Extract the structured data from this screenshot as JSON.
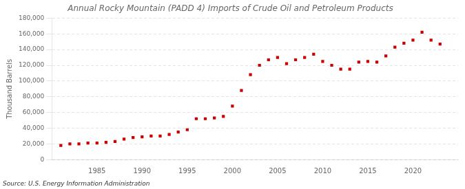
{
  "chart_data": {
    "type": "scatter",
    "title": "Annual Rocky Mountain (PADD 4) Imports of Crude Oil and Petroleum Products",
    "ylabel": "Thousand Barrels",
    "source": "Source: U.S. Energy Information Administration",
    "x": [
      1981,
      1982,
      1983,
      1984,
      1985,
      1986,
      1987,
      1988,
      1989,
      1990,
      1991,
      1992,
      1993,
      1994,
      1995,
      1996,
      1997,
      1998,
      1999,
      2000,
      2001,
      2002,
      2003,
      2004,
      2005,
      2006,
      2007,
      2008,
      2009,
      2010,
      2011,
      2012,
      2013,
      2014,
      2015,
      2016,
      2017,
      2018,
      2019,
      2020,
      2021,
      2022,
      2023
    ],
    "values": [
      18000,
      20000,
      20000,
      21000,
      21000,
      22000,
      23000,
      26000,
      28000,
      29000,
      30000,
      30000,
      32000,
      35000,
      38000,
      52000,
      52000,
      53000,
      55000,
      68000,
      88000,
      108000,
      120000,
      127000,
      130000,
      122000,
      127000,
      130000,
      134000,
      125000,
      120000,
      115000,
      115000,
      124000,
      125000,
      124000,
      132000,
      143000,
      148000,
      152000,
      162000,
      152000,
      147000
    ],
    "color": "#cc0000",
    "marker": "square",
    "xlim": [
      1980,
      2025
    ],
    "xticks": [
      1985,
      1990,
      1995,
      2000,
      2005,
      2010,
      2015,
      2020
    ],
    "ylim": [
      0,
      180000
    ],
    "yticks": [
      0,
      {
        "value": 20000,
        "label": "20,000"
      },
      {
        "value": 40000,
        "label": "40,000"
      },
      {
        "value": 60000,
        "label": "60,000"
      },
      {
        "value": 80000,
        "label": "80,000"
      },
      {
        "value": 100000,
        "label": "100,000"
      },
      {
        "value": 120000,
        "label": "120,000"
      },
      {
        "value": 140000,
        "label": "140,000"
      },
      {
        "value": 160000,
        "label": "160,000"
      },
      {
        "value": 180000,
        "label": "180,000"
      }
    ],
    "grid": "y"
  }
}
